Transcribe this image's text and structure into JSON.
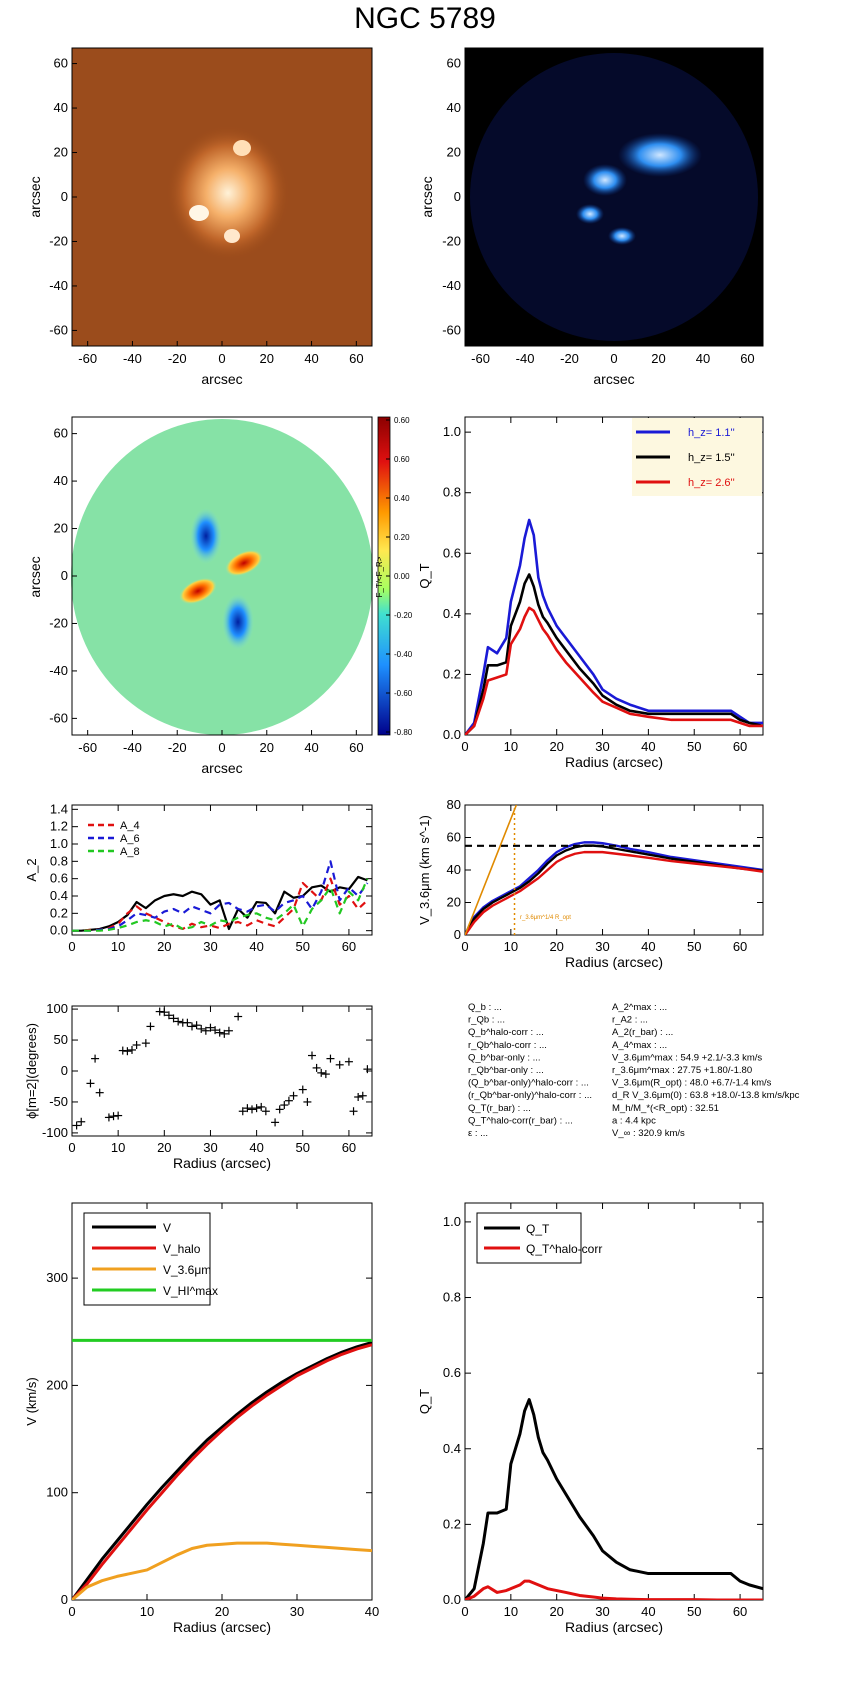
{
  "title": "NGC 5789",
  "panels": {
    "optical": {
      "xlabel": "arcsec",
      "ylabel": "arcsec",
      "ticks": [
        "-60",
        "-40",
        "-20",
        "0",
        "20",
        "40",
        "60"
      ]
    },
    "hi": {
      "xlabel": "arcsec",
      "ylabel": "arcsec",
      "ticks": [
        "-60",
        "-40",
        "-20",
        "0",
        "20",
        "40",
        "60"
      ]
    },
    "force": {
      "xlabel": "arcsec",
      "ylabel": "arcsec",
      "ticks": [
        "-60",
        "-40",
        "-20",
        "0",
        "20",
        "40",
        "60"
      ],
      "colorbar_label": "F_T/<F_R>",
      "colorbar_ticks": [
        "0.60",
        "0.60",
        "0.40",
        "0.20",
        "0.00",
        "-0.20",
        "-0.40",
        "-0.60",
        "-0.80"
      ]
    }
  },
  "stats": {
    "left": [
      "Q_b : ...",
      "r_Qb : ...",
      "Q_b^halo-corr : ...",
      "r_Qb^halo-corr : ...",
      "Q_b^bar-only : ...",
      "r_Qb^bar-only : ...",
      "(Q_b^bar-only)^halo-corr : ...",
      "(r_Qb^bar-only)^halo-corr : ...",
      "Q_T(r_bar) : ...",
      "Q_T^halo-corr(r_bar) : ...",
      "ε : ..."
    ],
    "right": [
      "A_2^max : ...",
      "r_A2 : ...",
      "A_2(r_bar) : ...",
      "A_4^max : ...",
      "V_3.6μm^max : 54.9 +2.1/-3.3 km/s",
      "r_3.6μm^max : 27.75 +1.80/-1.80",
      "V_3.6μm(R_opt) : 48.0 +6.7/-1.4 km/s",
      "d_R V_3.6μm(0) : 63.8 +18.0/-13.8 km/s/kpc",
      "M_h/M_*(<R_opt) : 32.51",
      "a : 4.4 kpc",
      "V_∞ : 320.9 km/s"
    ]
  },
  "chart_data": [
    {
      "id": "qt-profile",
      "type": "line",
      "xlabel": "Radius (arcsec)",
      "ylabel": "Q_T",
      "xlim": [
        0,
        65
      ],
      "ylim": [
        0,
        1.05
      ],
      "xticks": [
        0,
        10,
        20,
        30,
        40,
        50,
        60
      ],
      "yticks": [
        0.0,
        0.2,
        0.4,
        0.6,
        0.8,
        1.0
      ],
      "legend": {
        "position": "top-right"
      },
      "x": [
        0,
        2,
        4,
        5,
        7,
        9,
        10,
        12,
        13,
        14,
        15,
        16,
        17,
        18,
        20,
        22,
        25,
        28,
        30,
        33,
        36,
        40,
        45,
        50,
        55,
        58,
        60,
        62,
        65
      ],
      "series": [
        {
          "name": "h_z= 1.1''",
          "color": "#1a1ad6",
          "values": [
            0,
            0.04,
            0.2,
            0.29,
            0.27,
            0.32,
            0.44,
            0.56,
            0.65,
            0.71,
            0.66,
            0.52,
            0.46,
            0.42,
            0.36,
            0.32,
            0.26,
            0.2,
            0.15,
            0.12,
            0.1,
            0.08,
            0.08,
            0.08,
            0.08,
            0.08,
            0.06,
            0.04,
            0.04
          ]
        },
        {
          "name": "h_z= 1.5''",
          "color": "#000000",
          "values": [
            0,
            0.03,
            0.15,
            0.23,
            0.23,
            0.24,
            0.36,
            0.44,
            0.5,
            0.53,
            0.49,
            0.43,
            0.39,
            0.37,
            0.32,
            0.28,
            0.22,
            0.17,
            0.13,
            0.1,
            0.08,
            0.07,
            0.07,
            0.07,
            0.07,
            0.07,
            0.05,
            0.04,
            0.03
          ]
        },
        {
          "name": "h_z= 2.6''",
          "color": "#e01010",
          "values": [
            0,
            0.03,
            0.12,
            0.18,
            0.19,
            0.2,
            0.3,
            0.35,
            0.39,
            0.42,
            0.41,
            0.38,
            0.35,
            0.33,
            0.28,
            0.24,
            0.19,
            0.14,
            0.11,
            0.09,
            0.07,
            0.06,
            0.05,
            0.05,
            0.05,
            0.05,
            0.04,
            0.03,
            0.03
          ]
        }
      ]
    },
    {
      "id": "fourier-amplitudes",
      "type": "line",
      "xlabel": "",
      "ylabel": "A_2",
      "xlim": [
        0,
        65
      ],
      "ylim": [
        -0.05,
        1.45
      ],
      "xticks": [
        0,
        10,
        20,
        30,
        40,
        50,
        60
      ],
      "yticks": [
        0.0,
        0.2,
        0.4,
        0.6,
        0.8,
        1.0,
        1.2,
        1.4
      ],
      "legend": {
        "position": "top-left"
      },
      "x": [
        0,
        2,
        4,
        6,
        8,
        10,
        12,
        14,
        16,
        18,
        20,
        22,
        24,
        26,
        28,
        30,
        32,
        34,
        36,
        38,
        40,
        42,
        44,
        46,
        48,
        50,
        52,
        54,
        56,
        58,
        60,
        62,
        64
      ],
      "series": [
        {
          "name": "A_2",
          "color": "#000000",
          "style": "solid",
          "values": [
            0,
            0,
            0.01,
            0.02,
            0.05,
            0.1,
            0.18,
            0.33,
            0.26,
            0.35,
            0.4,
            0.42,
            0.4,
            0.45,
            0.42,
            0.3,
            0.35,
            0.02,
            0.25,
            0.15,
            0.33,
            0.32,
            0.2,
            0.45,
            0.38,
            0.4,
            0.5,
            0.52,
            0.45,
            0.5,
            0.48,
            0.62,
            0.58
          ]
        },
        {
          "name": "A_4",
          "color": "#e01010",
          "style": "dashed",
          "values": [
            0,
            0,
            0.01,
            0.01,
            0.03,
            0.08,
            0.2,
            0.28,
            0.2,
            0.15,
            0.1,
            0.05,
            0.02,
            0.08,
            0.04,
            0.06,
            0.03,
            0.08,
            0.1,
            0.06,
            0.12,
            0.08,
            0.05,
            0.15,
            0.25,
            0.55,
            0.45,
            0.35,
            0.6,
            0.3,
            0.4,
            0.25,
            0.35
          ]
        },
        {
          "name": "A_6",
          "color": "#1a1ad6",
          "style": "dashed",
          "values": [
            0,
            0,
            0,
            0.01,
            0.02,
            0.05,
            0.12,
            0.2,
            0.18,
            0.15,
            0.22,
            0.25,
            0.2,
            0.28,
            0.24,
            0.2,
            0.3,
            0.32,
            0.25,
            0.22,
            0.28,
            0.3,
            0.22,
            0.32,
            0.35,
            0.4,
            0.25,
            0.45,
            0.8,
            0.35,
            0.5,
            0.4,
            0.55
          ]
        },
        {
          "name": "A_8",
          "color": "#22c822",
          "style": "dashed",
          "values": [
            0,
            0,
            0,
            0,
            0.01,
            0.03,
            0.06,
            0.1,
            0.12,
            0.1,
            0.05,
            0.08,
            0.02,
            0.04,
            0.1,
            0.06,
            0.12,
            0.1,
            0.15,
            0.18,
            0.2,
            0.15,
            0.12,
            0.2,
            0.3,
            0.05,
            0.25,
            0.35,
            0.5,
            0.2,
            0.45,
            0.35,
            0.6
          ]
        }
      ]
    },
    {
      "id": "rotation-curve-36",
      "type": "line",
      "xlabel": "Radius (arcsec)",
      "ylabel": "V_3.6μm (km s^-1)",
      "xlim": [
        0,
        65
      ],
      "ylim": [
        0,
        80
      ],
      "xticks": [
        0,
        10,
        20,
        30,
        40,
        50,
        60
      ],
      "yticks": [
        0,
        20,
        40,
        60,
        80
      ],
      "annotation": "r_3.6μm^1/4 R_opt",
      "hline": {
        "y": 54.9,
        "color": "#000000",
        "style": "dashed"
      },
      "vline": {
        "x": 10.8,
        "color": "#e08a00",
        "style": "dotted"
      },
      "slope_line": {
        "x": [
          0,
          11.2
        ],
        "y": [
          0,
          80
        ],
        "color": "#e08a00"
      },
      "x": [
        0,
        1,
        2,
        4,
        6,
        8,
        10,
        12,
        14,
        16,
        18,
        20,
        22,
        24,
        26,
        28,
        30,
        33,
        36,
        40,
        45,
        50,
        55,
        60,
        65
      ],
      "series": [
        {
          "name": "V_3.6μm upper",
          "color": "#1a1ad6",
          "values": [
            0,
            6,
            11,
            17,
            21,
            24,
            27,
            30,
            35,
            40,
            46,
            51,
            54,
            56,
            57,
            57,
            56.5,
            55,
            53,
            51,
            48,
            46,
            44,
            42,
            40
          ]
        },
        {
          "name": "V_3.6μm",
          "color": "#000000",
          "values": [
            0,
            5,
            10,
            16,
            20,
            23,
            26,
            29,
            33,
            38,
            44,
            49,
            52,
            54,
            55,
            55,
            54.5,
            53,
            51.5,
            49.5,
            47,
            45,
            43,
            41,
            39.5
          ]
        },
        {
          "name": "V_3.6μm lower",
          "color": "#e01010",
          "values": [
            0,
            4,
            8,
            14,
            18,
            21,
            24,
            27,
            31,
            35,
            40,
            45,
            48,
            50,
            51,
            51,
            51,
            50,
            49,
            47.5,
            45.5,
            44,
            42.5,
            41,
            39
          ]
        }
      ]
    },
    {
      "id": "phase-profile",
      "type": "scatter",
      "xlabel": "Radius (arcsec)",
      "ylabel": "ϕ[m=2](degrees)",
      "xlim": [
        0,
        65
      ],
      "ylim": [
        -105,
        105
      ],
      "xticks": [
        0,
        10,
        20,
        30,
        40,
        50,
        60
      ],
      "yticks": [
        -100,
        -50,
        0,
        50,
        100
      ],
      "x": [
        1,
        2,
        4,
        5,
        6,
        8,
        9,
        10,
        11,
        12,
        13,
        14,
        16,
        17,
        19,
        20,
        21,
        22,
        23,
        24,
        25,
        26,
        27,
        28,
        29,
        30,
        31,
        32,
        33,
        34,
        36,
        37,
        38,
        39,
        40,
        41,
        42,
        44,
        45,
        46,
        47,
        48,
        50,
        51,
        52,
        53,
        54,
        55,
        56,
        58,
        60,
        61,
        62,
        63,
        64
      ],
      "values": [
        -88,
        -82,
        -20,
        20,
        -35,
        -75,
        -73,
        -72,
        33,
        32,
        34,
        42,
        45,
        72,
        96,
        95,
        90,
        85,
        80,
        78,
        78,
        72,
        74,
        68,
        65,
        70,
        66,
        62,
        60,
        65,
        88,
        -65,
        -60,
        -62,
        -60,
        -58,
        -65,
        -83,
        -62,
        -55,
        -48,
        -40,
        -30,
        -50,
        25,
        5,
        -3,
        -5,
        20,
        10,
        15,
        -65,
        -42,
        -40,
        3
      ]
    },
    {
      "id": "rotation-decomposition",
      "type": "line",
      "xlabel": "Radius (arcsec)",
      "ylabel": "V (km/s)",
      "xlim": [
        0,
        40
      ],
      "ylim": [
        0,
        370
      ],
      "xticks": [
        0,
        10,
        20,
        30,
        40
      ],
      "yticks": [
        0,
        100,
        200,
        300
      ],
      "legend": {
        "position": "top-left"
      },
      "x": [
        0,
        2,
        4,
        6,
        8,
        10,
        12,
        14,
        16,
        18,
        20,
        22,
        24,
        26,
        28,
        30,
        32,
        34,
        36,
        38,
        40
      ],
      "series": [
        {
          "name": "V",
          "color": "#000000",
          "values": [
            0,
            19,
            38,
            55,
            72,
            89,
            105,
            120,
            135,
            149,
            161,
            173,
            184,
            194,
            203,
            211,
            218,
            225,
            231,
            236,
            240
          ]
        },
        {
          "name": "V_halo",
          "color": "#e01010",
          "values": [
            0,
            15,
            33,
            50,
            67,
            84,
            100,
            116,
            131,
            145,
            158,
            170,
            181,
            191,
            200,
            209,
            216,
            223,
            229,
            234,
            238
          ]
        },
        {
          "name": "V_3.6μm",
          "color": "#f0a020",
          "values": [
            0,
            12,
            18,
            22,
            25,
            28,
            35,
            42,
            48,
            51,
            52,
            53,
            53,
            53,
            52,
            51,
            50,
            49,
            48,
            47,
            46
          ]
        },
        {
          "name": "V_HI^max",
          "color": "#22cc22",
          "values": [
            242,
            242,
            242,
            242,
            242,
            242,
            242,
            242,
            242,
            242,
            242,
            242,
            242,
            242,
            242,
            242,
            242,
            242,
            242,
            242,
            242
          ]
        }
      ]
    },
    {
      "id": "qt-halo-corr",
      "type": "line",
      "xlabel": "Radius (arcsec)",
      "ylabel": "Q_T",
      "xlim": [
        0,
        65
      ],
      "ylim": [
        0,
        1.05
      ],
      "xticks": [
        0,
        10,
        20,
        30,
        40,
        50,
        60
      ],
      "yticks": [
        0.0,
        0.2,
        0.4,
        0.6,
        0.8,
        1.0
      ],
      "legend": {
        "position": "top-left"
      },
      "x": [
        0,
        2,
        4,
        5,
        7,
        9,
        10,
        12,
        13,
        14,
        15,
        16,
        17,
        18,
        20,
        22,
        25,
        28,
        30,
        33,
        36,
        40,
        45,
        50,
        55,
        58,
        60,
        62,
        65
      ],
      "series": [
        {
          "name": "Q_T",
          "color": "#000000",
          "values": [
            0,
            0.03,
            0.15,
            0.23,
            0.23,
            0.24,
            0.36,
            0.44,
            0.5,
            0.53,
            0.49,
            0.43,
            0.39,
            0.37,
            0.32,
            0.28,
            0.22,
            0.17,
            0.13,
            0.1,
            0.08,
            0.07,
            0.07,
            0.07,
            0.07,
            0.07,
            0.05,
            0.04,
            0.03
          ]
        },
        {
          "name": "Q_T^halo-corr",
          "color": "#e01010",
          "values": [
            0,
            0.01,
            0.03,
            0.035,
            0.02,
            0.025,
            0.03,
            0.04,
            0.05,
            0.05,
            0.045,
            0.04,
            0.035,
            0.03,
            0.025,
            0.02,
            0.012,
            0.008,
            0.005,
            0.003,
            0.002,
            0.001,
            0.001,
            0.001,
            0,
            0,
            0,
            0,
            0
          ]
        }
      ]
    }
  ]
}
